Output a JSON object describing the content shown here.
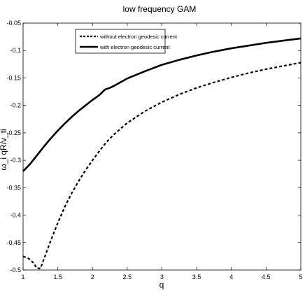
{
  "chart_data": {
    "type": "line",
    "title": "low frequency GAM",
    "xlabel": "q",
    "ylabel": "ω_i qR/v_ti",
    "xlim": [
      1,
      5
    ],
    "ylim": [
      -0.5,
      -0.05
    ],
    "xticks": [
      "1",
      "1.5",
      "2",
      "2.5",
      "3",
      "3.5",
      "4",
      "4.5",
      "5"
    ],
    "yticks": [
      "-0.05",
      "-0.1",
      "-0.15",
      "-0.2",
      "-0.25",
      "-0.3",
      "-0.35",
      "-0.4",
      "-0.45",
      "-0.5"
    ],
    "grid": false,
    "legend_position": "top-left",
    "series": [
      {
        "name": "without electron geodesic current",
        "style": "dashed",
        "color": "#000000",
        "x": [
          1.0,
          1.08,
          1.15,
          1.2,
          1.25,
          1.3,
          1.35,
          1.4,
          1.5,
          1.6,
          1.7,
          1.8,
          1.9,
          2.0,
          2.1,
          2.2,
          2.3,
          2.4,
          2.5,
          2.75,
          3.0,
          3.25,
          3.5,
          3.75,
          4.0,
          4.25,
          4.5,
          4.75,
          5.0
        ],
        "y": [
          -0.475,
          -0.479,
          -0.487,
          -0.497,
          -0.497,
          -0.48,
          -0.463,
          -0.446,
          -0.414,
          -0.385,
          -0.36,
          -0.338,
          -0.318,
          -0.3,
          -0.283,
          -0.267,
          -0.254,
          -0.243,
          -0.232,
          -0.211,
          -0.194,
          -0.18,
          -0.168,
          -0.158,
          -0.149,
          -0.141,
          -0.134,
          -0.128,
          -0.122
        ]
      },
      {
        "name": "with electron geodesic current",
        "style": "solid",
        "color": "#000000",
        "x": [
          1.0,
          1.1,
          1.2,
          1.3,
          1.4,
          1.5,
          1.6,
          1.7,
          1.8,
          1.9,
          2.0,
          2.1,
          2.18,
          2.25,
          2.3,
          2.4,
          2.5,
          2.75,
          3.0,
          3.25,
          3.5,
          3.75,
          4.0,
          4.25,
          4.5,
          4.75,
          5.0
        ],
        "y": [
          -0.32,
          -0.307,
          -0.291,
          -0.275,
          -0.26,
          -0.246,
          -0.233,
          -0.221,
          -0.21,
          -0.2,
          -0.19,
          -0.181,
          -0.171,
          -0.168,
          -0.165,
          -0.158,
          -0.151,
          -0.138,
          -0.126,
          -0.117,
          -0.109,
          -0.102,
          -0.096,
          -0.091,
          -0.086,
          -0.082,
          -0.078
        ]
      }
    ]
  }
}
